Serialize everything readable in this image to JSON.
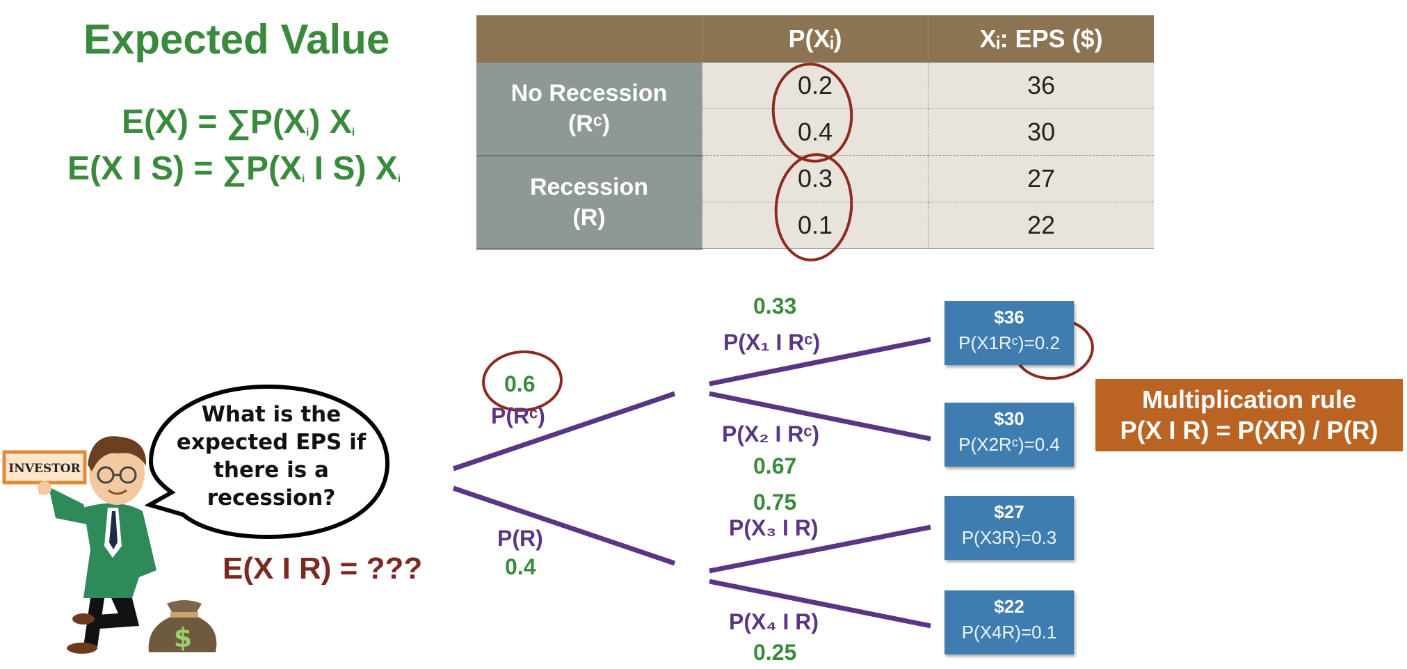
{
  "title": "Expected Value",
  "formulas": {
    "line1": {
      "lhs": "E(X) = ∑P(X",
      "sub": "i",
      "mid": ") X",
      "sub2": "i"
    },
    "line2": {
      "lhs": "E(X I S) = ∑P(X",
      "sub": "i",
      "mid": " I S) X",
      "sub2": "i"
    }
  },
  "table": {
    "headers": [
      "",
      "P(Xᵢ)",
      "Xᵢ: EPS ($)"
    ],
    "groups": [
      {
        "label_line1": "No Recession",
        "label_line2": "(Rᶜ)",
        "rows": [
          {
            "p": "0.2",
            "x": "36"
          },
          {
            "p": "0.4",
            "x": "30"
          }
        ]
      },
      {
        "label_line1": "Recession",
        "label_line2": "(R)",
        "rows": [
          {
            "p": "0.3",
            "x": "27"
          },
          {
            "p": "0.1",
            "x": "22"
          }
        ]
      }
    ]
  },
  "tree": {
    "branch_rc": {
      "prob": "0.6",
      "label": "P(Rᶜ)"
    },
    "branch_r": {
      "label": "P(R)",
      "prob": "0.4"
    },
    "leaves": [
      {
        "prob": "0.33",
        "label": "P(X₁ I Rᶜ)",
        "amount": "$36",
        "joint": "P(X1Rᶜ)=0.2"
      },
      {
        "prob": "0.67",
        "label": "P(X₂ I Rᶜ)",
        "amount": "$30",
        "joint": "P(X2Rᶜ)=0.4"
      },
      {
        "prob": "0.75",
        "label": "P(X₃ I R)",
        "amount": "$27",
        "joint": "P(X3R)=0.3"
      },
      {
        "prob": "0.25",
        "label": "P(X₄ I R)",
        "amount": "$22",
        "joint": "P(X4R)=0.1"
      }
    ],
    "colors": {
      "branch": "#5b3585",
      "prob": "#3a8a3e",
      "circle": "#8b2a1e"
    }
  },
  "multiplication_rule": {
    "line1": "Multiplication rule",
    "line2": "P(X I R) = P(XR) / P(R)"
  },
  "speech_bubble": {
    "line1": "What is the",
    "line2": "expected EPS if",
    "line3": "there is a",
    "line4": "recession?"
  },
  "investor_sign": "INVESTOR",
  "question_equation": "E(X I R) = ???",
  "money_bag_symbol": "$"
}
